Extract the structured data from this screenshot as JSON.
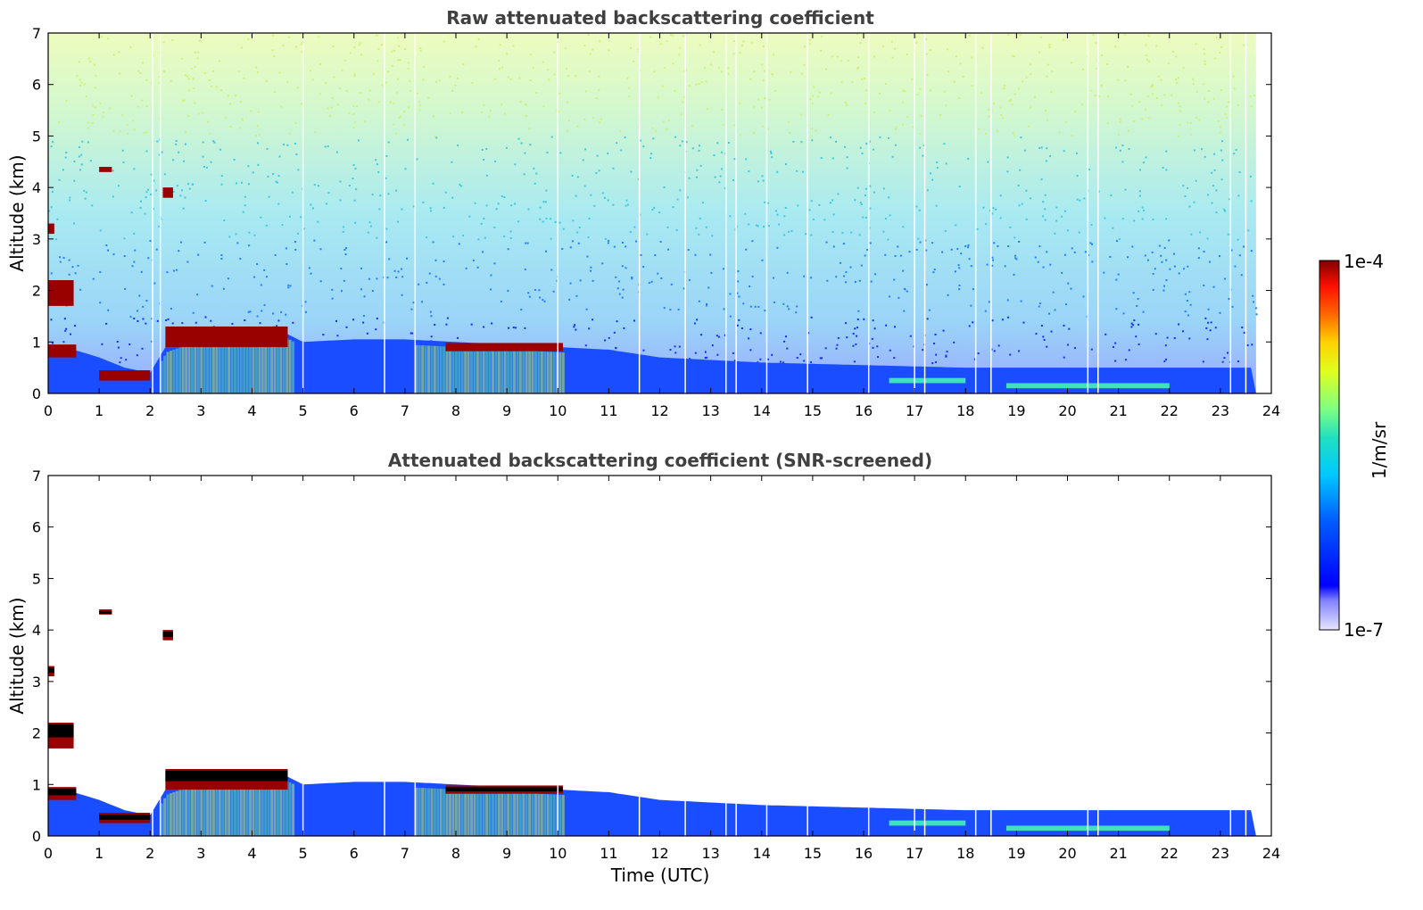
{
  "chart_data": [
    {
      "type": "heatmap",
      "title": "Raw attenuated backscattering coefficient",
      "xlabel": "",
      "ylabel": "Altitude (km)",
      "xlim": [
        0,
        24
      ],
      "ylim": [
        0,
        7
      ],
      "x_ticks": [
        "0",
        "1",
        "2",
        "3",
        "4",
        "5",
        "6",
        "7",
        "8",
        "9",
        "10",
        "11",
        "12",
        "13",
        "14",
        "15",
        "16",
        "17",
        "18",
        "19",
        "20",
        "21",
        "22",
        "23",
        "24"
      ],
      "y_ticks": [
        "0",
        "1",
        "2",
        "3",
        "4",
        "5",
        "6",
        "7"
      ],
      "data_end_hour": 23.7,
      "boundary_layer_top_km": [
        [
          0,
          0.9
        ],
        [
          0.5,
          0.85
        ],
        [
          1,
          0.7
        ],
        [
          1.5,
          0.5
        ],
        [
          2,
          0.4
        ],
        [
          2.3,
          0.9
        ],
        [
          3,
          1.15
        ],
        [
          4,
          1.3
        ],
        [
          4.6,
          1.2
        ],
        [
          5,
          1.0
        ],
        [
          6,
          1.05
        ],
        [
          7,
          1.05
        ],
        [
          8,
          1.0
        ],
        [
          9,
          0.95
        ],
        [
          10,
          0.9
        ],
        [
          11,
          0.85
        ],
        [
          12,
          0.7
        ],
        [
          14,
          0.6
        ],
        [
          16,
          0.55
        ],
        [
          18,
          0.5
        ],
        [
          20,
          0.5
        ],
        [
          22,
          0.5
        ],
        [
          23.7,
          0.5
        ]
      ],
      "cloud_layers": [
        {
          "t0": 0.0,
          "t1": 0.55,
          "alt0": 0.7,
          "alt1": 0.95
        },
        {
          "t0": 0.0,
          "t1": 0.5,
          "alt0": 1.7,
          "alt1": 2.2
        },
        {
          "t0": 0.0,
          "t1": 0.12,
          "alt0": 3.1,
          "alt1": 3.3
        },
        {
          "t0": 1.0,
          "t1": 1.25,
          "alt0": 4.3,
          "alt1": 4.4
        },
        {
          "t0": 2.25,
          "t1": 2.45,
          "alt0": 3.8,
          "alt1": 4.0
        },
        {
          "t0": 2.3,
          "t1": 4.7,
          "alt0": 0.9,
          "alt1": 1.3
        },
        {
          "t0": 7.8,
          "t1": 10.1,
          "alt0": 0.82,
          "alt1": 0.98
        },
        {
          "t0": 1.0,
          "t1": 2.0,
          "alt0": 0.25,
          "alt1": 0.45
        }
      ],
      "aerosol_layers": [
        {
          "t0": 16.5,
          "t1": 18.0,
          "alt": 0.25
        },
        {
          "t0": 18.8,
          "t1": 22.0,
          "alt": 0.15
        }
      ],
      "colorbar": {
        "min_label": "1e-7",
        "max_label": "1e-4",
        "label": "1/m/sr",
        "scale": "log",
        "colormap": "jet"
      },
      "colors": {
        "background": "#ffffff",
        "boundary_layer": "#1a4dff",
        "cloud": "#990000",
        "noise_top": "#c8f070",
        "noise_mid": "#40c8e8"
      }
    },
    {
      "type": "heatmap",
      "title": "Attenuated backscattering coefficient (SNR-screened)",
      "xlabel": "Time (UTC)",
      "ylabel": "Altitude (km)",
      "xlim": [
        0,
        24
      ],
      "ylim": [
        0,
        7
      ],
      "x_ticks": [
        "0",
        "1",
        "2",
        "3",
        "4",
        "5",
        "6",
        "7",
        "8",
        "9",
        "10",
        "11",
        "12",
        "13",
        "14",
        "15",
        "16",
        "17",
        "18",
        "19",
        "20",
        "21",
        "22",
        "23",
        "24"
      ],
      "y_ticks": [
        "0",
        "1",
        "2",
        "3",
        "4",
        "5",
        "6",
        "7"
      ],
      "screened_above_boundary_layer": true,
      "cloud_core_color": "#000000"
    }
  ]
}
